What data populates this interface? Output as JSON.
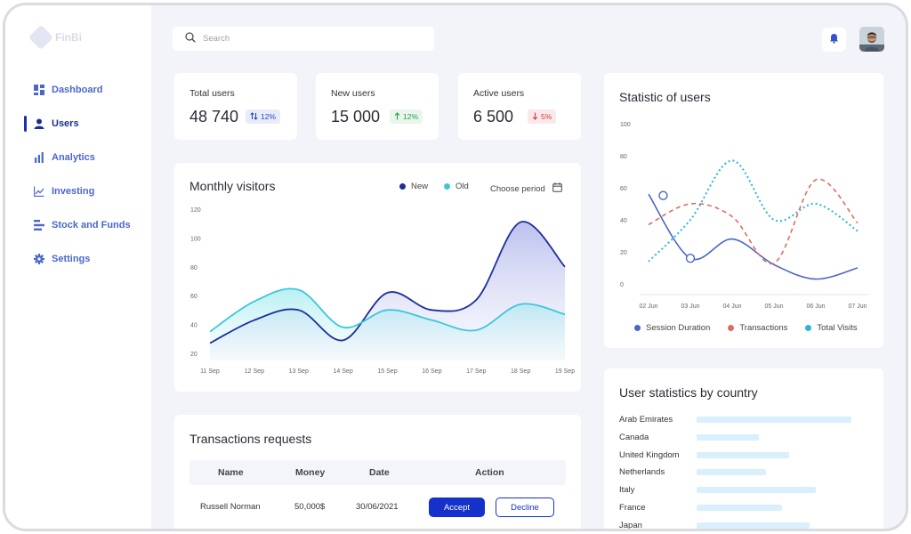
{
  "brand": {
    "name": "FinBi"
  },
  "sidebar": {
    "items": [
      {
        "label": "Dashboard",
        "icon": "dashboard-grid-icon",
        "active": false
      },
      {
        "label": "Users",
        "icon": "user-icon",
        "active": true
      },
      {
        "label": "Analytics",
        "icon": "bar-chart-icon",
        "active": false
      },
      {
        "label": "Investing",
        "icon": "line-trend-icon",
        "active": false
      },
      {
        "label": "Stock and Funds",
        "icon": "stack-bars-icon",
        "active": false
      },
      {
        "label": "Settings",
        "icon": "gear-icon",
        "active": false
      }
    ]
  },
  "search": {
    "placeholder": "Search",
    "value": ""
  },
  "stats": {
    "total": {
      "label": "Total users",
      "value": "48 740",
      "change": "12%"
    },
    "new": {
      "label": "New users",
      "value": "15 000",
      "change": "12%"
    },
    "active": {
      "label": "Active users",
      "value": "6 500",
      "change": "5%"
    }
  },
  "monthly": {
    "title": "Monthly visitors",
    "legend_new": "New",
    "legend_old": "Old",
    "period_label": "Choose period"
  },
  "transactions": {
    "title": "Transactions requests",
    "headers": {
      "name": "Name",
      "money": "Money",
      "date": "Date",
      "action": "Action"
    },
    "rows": [
      {
        "name": "Russell Norman",
        "money": "50,000$",
        "date": "30/06/2021"
      }
    ],
    "accept_label": "Accept",
    "decline_label": "Decline"
  },
  "statistic": {
    "title": "Statistic of users",
    "legend": [
      "Session Duration",
      "Transactions",
      "Total Visits"
    ]
  },
  "country": {
    "title": "User statistics by country",
    "rows": [
      {
        "name": "Arab Emirates",
        "value": 1.0
      },
      {
        "name": "Canada",
        "value": 0.4
      },
      {
        "name": "United Kingdom",
        "value": 0.6
      },
      {
        "name": "Netherlands",
        "value": 0.45
      },
      {
        "name": "Italy",
        "value": 0.77
      },
      {
        "name": "France",
        "value": 0.55
      },
      {
        "name": "Japan",
        "value": 0.73
      }
    ]
  },
  "colors": {
    "primary": "#1b2fa8",
    "new_series": "#1c2f9c",
    "old_series": "#3ec6d8",
    "session": "#4a66c8",
    "transactions": "#e06b5f",
    "visits": "#2bb5d8"
  },
  "chart_data": [
    {
      "type": "area",
      "categories": [
        "11 Sep",
        "12 Sep",
        "13 Sep",
        "14 Sep",
        "15 Sep",
        "16 Sep",
        "17 Sep",
        "18 Sep",
        "19 Sep"
      ],
      "yticks": [
        20,
        40,
        60,
        80,
        100,
        120
      ],
      "ylim": [
        15,
        120
      ],
      "series": [
        {
          "name": "New",
          "values": [
            27,
            43,
            50,
            29,
            62,
            50,
            57,
            111,
            80
          ]
        },
        {
          "name": "Old",
          "values": [
            35,
            56,
            64,
            38,
            50,
            43,
            36,
            54,
            47
          ]
        }
      ]
    },
    {
      "type": "line",
      "categories": [
        "02 Jun",
        "03 Jun",
        "04 Jun",
        "05 Jun",
        "06 Jun",
        "07 Jun"
      ],
      "yticks": [
        0,
        20,
        40,
        60,
        80,
        100
      ],
      "ylim": [
        0,
        100
      ],
      "series": [
        {
          "name": "Session Duration",
          "values": [
            56,
            16,
            28,
            12,
            3,
            10
          ]
        },
        {
          "name": "Transactions",
          "values": [
            37,
            50,
            42,
            13,
            65,
            38
          ]
        },
        {
          "name": "Total Visits",
          "values": [
            14,
            40,
            77,
            40,
            50,
            33
          ]
        }
      ]
    }
  ]
}
